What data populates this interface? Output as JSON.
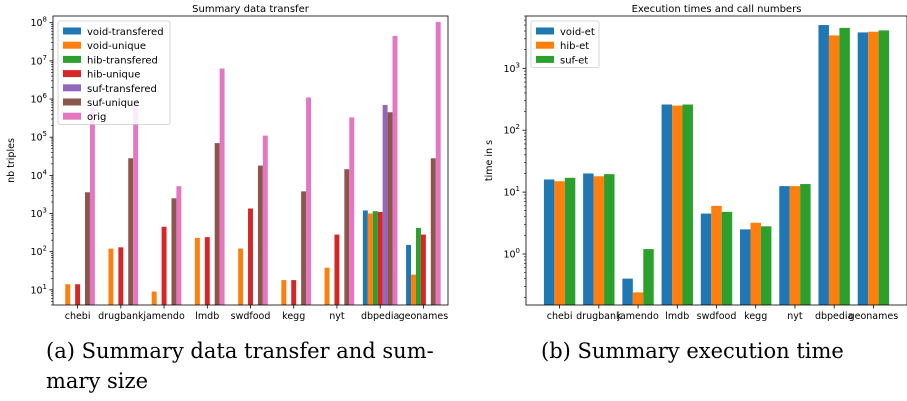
{
  "chart_data": [
    {
      "type": "bar",
      "title": "Summary data transfer",
      "xlabel": "",
      "ylabel": "nb triples",
      "yscale": "log",
      "ylim": [
        4,
        150000000
      ],
      "categories": [
        "chebi",
        "drugbank",
        "jamendo",
        "lmdb",
        "swdfood",
        "kegg",
        "nyt",
        "dbpedia",
        "geonames"
      ],
      "legend_position": "top-left",
      "series": [
        {
          "name": "void-transfered",
          "color": "#1f77b4",
          "values": [
            null,
            null,
            null,
            null,
            null,
            null,
            null,
            1200,
            150
          ]
        },
        {
          "name": "void-unique",
          "color": "#ff7f0e",
          "values": [
            14,
            120,
            9,
            230,
            120,
            18,
            38,
            1000,
            25
          ]
        },
        {
          "name": "hib-transfered",
          "color": "#2ca02c",
          "values": [
            null,
            null,
            null,
            null,
            null,
            null,
            null,
            1150,
            420
          ]
        },
        {
          "name": "hib-unique",
          "color": "#d62728",
          "values": [
            14,
            130,
            450,
            240,
            1350,
            18,
            280,
            1100,
            280
          ]
        },
        {
          "name": "suf-transfered",
          "color": "#9467bd",
          "values": [
            null,
            null,
            null,
            null,
            null,
            null,
            null,
            700000,
            null
          ]
        },
        {
          "name": "suf-unique",
          "color": "#8c564b",
          "values": [
            3600,
            28000,
            2500,
            70000,
            18000,
            3800,
            14500,
            450000,
            28000
          ]
        },
        {
          "name": "orig",
          "color": "#e377c2",
          "values": [
            600000,
            700000,
            5200,
            6300000,
            110000,
            1100000,
            330000,
            45000000,
            105000000
          ]
        }
      ],
      "yticks": [
        {
          "value": 10,
          "base": "10",
          "exp": "1"
        },
        {
          "value": 100,
          "base": "10",
          "exp": "2"
        },
        {
          "value": 1000,
          "base": "10",
          "exp": "3"
        },
        {
          "value": 10000,
          "base": "10",
          "exp": "4"
        },
        {
          "value": 100000,
          "base": "10",
          "exp": "5"
        },
        {
          "value": 1000000,
          "base": "10",
          "exp": "6"
        },
        {
          "value": 10000000,
          "base": "10",
          "exp": "7"
        },
        {
          "value": 100000000,
          "base": "10",
          "exp": "8"
        }
      ]
    },
    {
      "type": "bar",
      "title": "Execution times and call numbers",
      "xlabel": "",
      "ylabel": "time in s",
      "yscale": "log",
      "ylim": [
        0.15,
        7000
      ],
      "categories": [
        "chebi",
        "drugbank",
        "jamendo",
        "lmdb",
        "swdfood",
        "kegg",
        "nyt",
        "dbpedia",
        "geonames"
      ],
      "legend_position": "top-left",
      "series": [
        {
          "name": "void-et",
          "color": "#1f77b4",
          "values": [
            16,
            20,
            0.4,
            260,
            4.5,
            2.5,
            12.5,
            5000,
            3800
          ]
        },
        {
          "name": "hib-et",
          "color": "#ff7f0e",
          "values": [
            15,
            18,
            0.24,
            250,
            6,
            3.2,
            12.5,
            3400,
            3900
          ]
        },
        {
          "name": "suf-et",
          "color": "#2ca02c",
          "values": [
            17,
            19.5,
            1.2,
            260,
            4.8,
            2.8,
            13.5,
            4500,
            4100
          ]
        }
      ],
      "yticks": [
        {
          "value": 1,
          "base": "10",
          "exp": "0"
        },
        {
          "value": 10,
          "base": "10",
          "exp": "1"
        },
        {
          "value": 100,
          "base": "10",
          "exp": "2"
        },
        {
          "value": 1000,
          "base": "10",
          "exp": "3"
        }
      ]
    }
  ],
  "captions": {
    "a_line1": "(a) Summary data transfer and sum-",
    "a_line2": "mary size",
    "b_line1": "(b) Summary execution time"
  }
}
